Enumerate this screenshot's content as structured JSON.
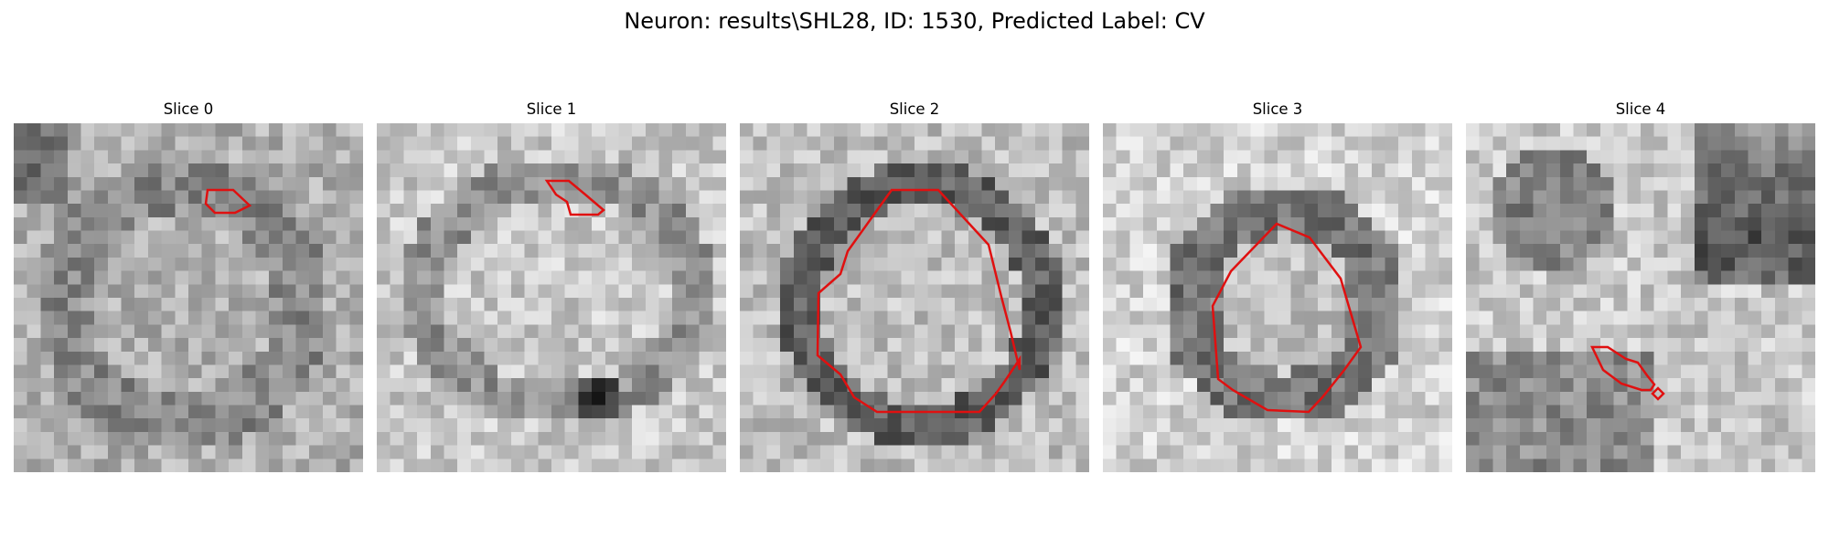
{
  "figure": {
    "title": "Neuron: results\\SHL28, ID: 1530, Predicted Label: CV"
  },
  "slices": [
    {
      "title": "Slice 0"
    },
    {
      "title": "Slice 1"
    },
    {
      "title": "Slice 2"
    },
    {
      "title": "Slice 3"
    },
    {
      "title": "Slice 4"
    }
  ],
  "colors": {
    "contour": "#e01010",
    "background": "#ffffff",
    "colormap": "grayscale"
  }
}
